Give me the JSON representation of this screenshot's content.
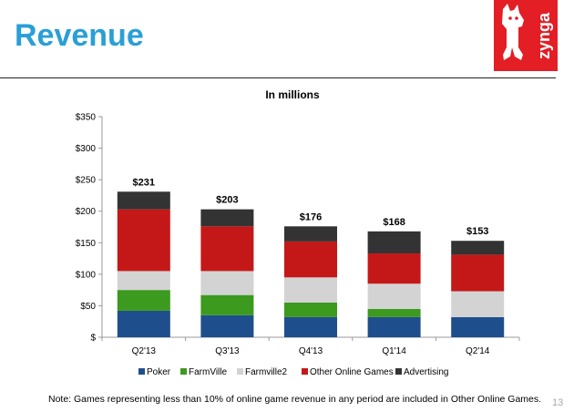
{
  "slide": {
    "title": "Revenue",
    "logo_text": "zynga",
    "note": "Note: Games representing less than 10% of online game revenue in any period are included in Other Online Games.",
    "page_number": "13"
  },
  "chart_data": {
    "type": "bar",
    "stacked": true,
    "title": "In millions",
    "xlabel": "",
    "ylabel": "",
    "categories": [
      "Q2'13",
      "Q3'13",
      "Q4'13",
      "Q1'14",
      "Q2'14"
    ],
    "ylim": [
      0,
      350
    ],
    "yticks": [
      0,
      50,
      100,
      150,
      200,
      250,
      300,
      350
    ],
    "ytick_labels": [
      "$",
      "$50",
      "$100",
      "$150",
      "$200",
      "$250",
      "$300",
      "$350"
    ],
    "totals": [
      "$231",
      "$203",
      "$176",
      "$168",
      "$153"
    ],
    "legend_position": "bottom",
    "grid": false,
    "series": [
      {
        "name": "Poker",
        "color": "#1f4e8c",
        "values": [
          42,
          35,
          32,
          32,
          32
        ]
      },
      {
        "name": "FarmVille",
        "color": "#3c9a1e",
        "values": [
          33,
          32,
          23,
          13,
          0
        ]
      },
      {
        "name": "Farmville2",
        "color": "#d3d3d3",
        "values": [
          30,
          38,
          40,
          40,
          41
        ]
      },
      {
        "name": "Other Online Games",
        "color": "#c41818",
        "values": [
          98,
          71,
          57,
          48,
          58
        ]
      },
      {
        "name": "Advertising",
        "color": "#333333",
        "values": [
          28,
          27,
          24,
          35,
          22
        ]
      }
    ]
  }
}
